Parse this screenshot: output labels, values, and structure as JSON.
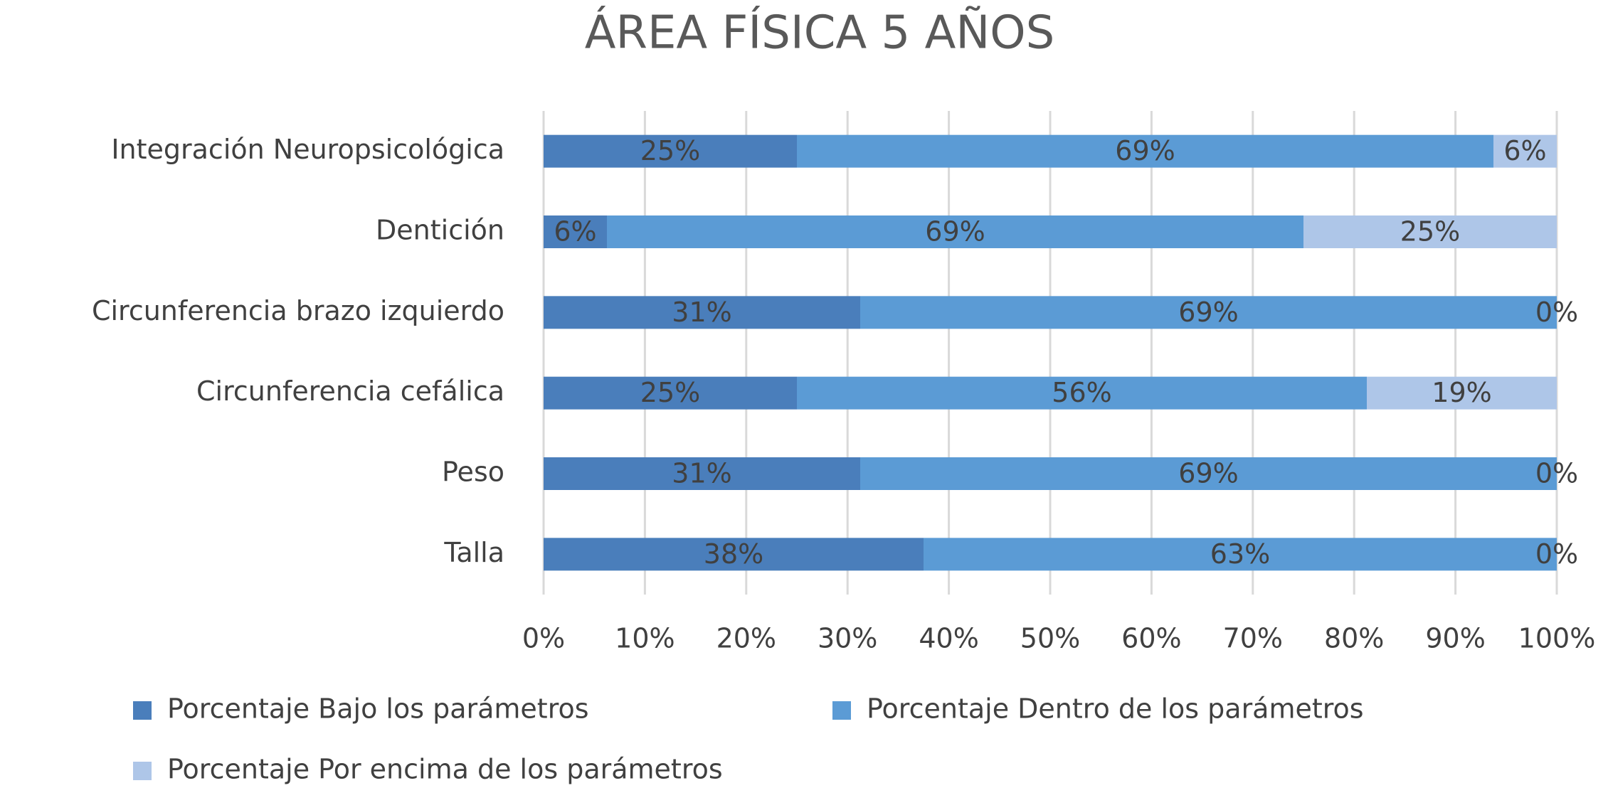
{
  "chart_data": {
    "type": "stacked-bar-horizontal",
    "title": "ÁREA FÍSICA 5 AÑOS",
    "categories": [
      "Integración Neuropsicológica",
      "Dentición",
      "Circunferencia brazo izquierdo",
      "Circunferencia cefálica",
      "Peso",
      "Talla"
    ],
    "series": [
      {
        "name": "Porcentaje Bajo los parámetros",
        "color": "#4a7ebb",
        "values": [
          25,
          6.25,
          31.25,
          25,
          31.25,
          37.5
        ],
        "value_labels": [
          "25%",
          "6%",
          "31%",
          "25%",
          "31%",
          "38%"
        ]
      },
      {
        "name": "Porcentaje Dentro de los parámetros",
        "color": "#5b9bd5",
        "values": [
          68.75,
          68.75,
          68.75,
          56.25,
          68.75,
          62.5
        ],
        "value_labels": [
          "69%",
          "69%",
          "69%",
          "56%",
          "69%",
          "63%"
        ]
      },
      {
        "name": "Porcentaje Por encima de los parámetros",
        "color": "#aec6e8",
        "values": [
          6.25,
          25,
          0,
          18.75,
          0,
          0
        ],
        "value_labels": [
          "6%",
          "25%",
          "0%",
          "19%",
          "0%",
          "0%"
        ]
      }
    ],
    "xlim": [
      0,
      100
    ],
    "xticks": [
      {
        "value": 0,
        "label": "0%"
      },
      {
        "value": 10,
        "label": "10%"
      },
      {
        "value": 20,
        "label": "20%"
      },
      {
        "value": 30,
        "label": "30%"
      },
      {
        "value": 40,
        "label": "40%"
      },
      {
        "value": 50,
        "label": "50%"
      },
      {
        "value": 60,
        "label": "60%"
      },
      {
        "value": 70,
        "label": "70%"
      },
      {
        "value": 80,
        "label": "80%"
      },
      {
        "value": 90,
        "label": "90%"
      },
      {
        "value": 100,
        "label": "100%"
      }
    ],
    "grid": true,
    "legend": "bottom"
  }
}
